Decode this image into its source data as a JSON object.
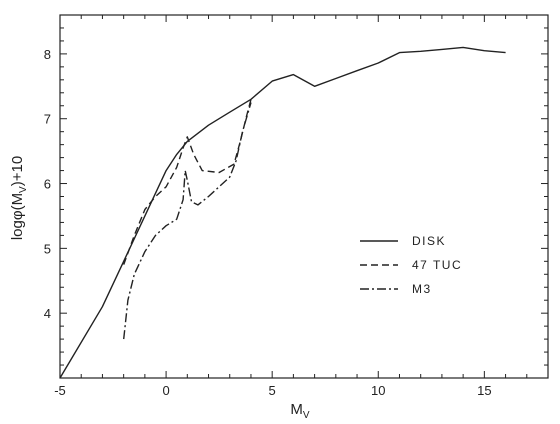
{
  "chart_data": {
    "type": "line",
    "title": "",
    "xlabel": "M",
    "xlabel_sub": "V",
    "ylabel": "logφ(M",
    "ylabel_sub": "V",
    "ylabel_tail": ")+10",
    "xlim": [
      -5,
      18
    ],
    "ylim": [
      3,
      8.6
    ],
    "xticks": [
      -5,
      0,
      5,
      10,
      15
    ],
    "yticks": [
      4,
      5,
      6,
      7,
      8
    ],
    "grid": false,
    "legend": {
      "placement": "middle-right"
    },
    "series": [
      {
        "name": "DISK",
        "style": "solid",
        "points": [
          [
            -5,
            3.0
          ],
          [
            -3,
            4.1
          ],
          [
            -2,
            4.8
          ],
          [
            -1,
            5.5
          ],
          [
            0,
            6.2
          ],
          [
            0.5,
            6.45
          ],
          [
            1,
            6.65
          ],
          [
            2,
            6.9
          ],
          [
            3,
            7.1
          ],
          [
            4,
            7.3
          ],
          [
            5,
            7.58
          ],
          [
            6,
            7.68
          ],
          [
            7,
            7.5
          ],
          [
            8,
            7.62
          ],
          [
            9,
            7.74
          ],
          [
            10,
            7.86
          ],
          [
            11,
            8.02
          ],
          [
            12,
            8.04
          ],
          [
            13,
            8.07
          ],
          [
            14,
            8.1
          ],
          [
            15,
            8.05
          ],
          [
            16,
            8.02
          ]
        ]
      },
      {
        "name": "47 TUC",
        "style": "dashed",
        "points": [
          [
            -2,
            4.75
          ],
          [
            -1.5,
            5.2
          ],
          [
            -1,
            5.6
          ],
          [
            -0.5,
            5.8
          ],
          [
            0,
            5.95
          ],
          [
            0.5,
            6.25
          ],
          [
            0.8,
            6.55
          ],
          [
            1,
            6.72
          ],
          [
            1.3,
            6.45
          ],
          [
            1.7,
            6.2
          ],
          [
            2.5,
            6.17
          ],
          [
            3.2,
            6.3
          ],
          [
            3.5,
            6.65
          ],
          [
            3.8,
            7.05
          ],
          [
            4,
            7.3
          ]
        ]
      },
      {
        "name": "M3",
        "style": "dashdot",
        "points": [
          [
            -2,
            3.6
          ],
          [
            -1.8,
            4.2
          ],
          [
            -1.5,
            4.6
          ],
          [
            -1,
            4.95
          ],
          [
            -0.5,
            5.2
          ],
          [
            0,
            5.35
          ],
          [
            0.5,
            5.45
          ],
          [
            0.8,
            5.75
          ],
          [
            0.9,
            6.2
          ],
          [
            1,
            6.05
          ],
          [
            1.2,
            5.72
          ],
          [
            1.5,
            5.67
          ],
          [
            2,
            5.8
          ],
          [
            3,
            6.1
          ],
          [
            3.3,
            6.35
          ],
          [
            3.6,
            6.8
          ],
          [
            4,
            7.25
          ]
        ]
      }
    ]
  }
}
